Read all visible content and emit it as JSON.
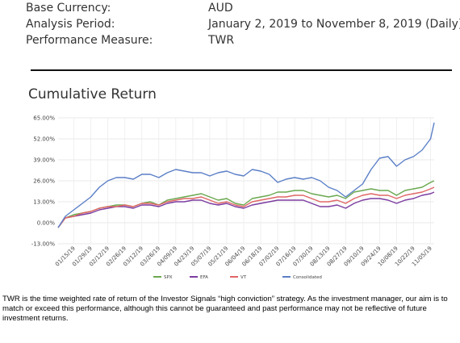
{
  "report_info": {
    "rows": [
      {
        "label": "Base Currency:",
        "value": "AUD"
      },
      {
        "label": "Analysis Period:",
        "value": "January 2, 2019 to November 8, 2019 (Daily)"
      },
      {
        "label": "Performance Measure:",
        "value": "TWR"
      }
    ]
  },
  "chart_data": {
    "type": "line",
    "title": "Cumulative Return",
    "xlabel": "",
    "ylabel": "",
    "ylim": [
      -13,
      65
    ],
    "y_ticks": [
      "65.00%",
      "52.00%",
      "39.00%",
      "26.00%",
      "13.00%",
      "0.00%",
      "-13.00%"
    ],
    "y_tick_values": [
      65,
      52,
      39,
      26,
      13,
      0,
      -13
    ],
    "x_tick_labels": [
      "01/15/19",
      "01/29/19",
      "02/12/19",
      "02/26/19",
      "03/12/19",
      "03/26/19",
      "04/09/19",
      "04/23/19",
      "05/07/19",
      "05/21/19",
      "06/04/19",
      "06/18/19",
      "07/02/19",
      "07/16/19",
      "07/30/19",
      "08/13/19",
      "08/27/19",
      "09/10/19",
      "09/24/19",
      "10/08/19",
      "10/22/19",
      "11/05/19"
    ],
    "x": [
      "01/02/19",
      "01/08/19",
      "01/15/19",
      "01/22/19",
      "01/29/19",
      "02/05/19",
      "02/12/19",
      "02/19/19",
      "02/26/19",
      "03/05/19",
      "03/12/19",
      "03/19/19",
      "03/26/19",
      "04/02/19",
      "04/09/19",
      "04/16/19",
      "04/23/19",
      "04/30/19",
      "05/07/19",
      "05/14/19",
      "05/21/19",
      "05/28/19",
      "06/04/19",
      "06/11/19",
      "06/18/19",
      "06/25/19",
      "07/02/19",
      "07/09/19",
      "07/16/19",
      "07/23/19",
      "07/30/19",
      "08/06/19",
      "08/13/19",
      "08/20/19",
      "08/27/19",
      "09/03/19",
      "09/10/19",
      "09/17/19",
      "09/24/19",
      "10/01/19",
      "10/08/19",
      "10/15/19",
      "10/22/19",
      "10/29/19",
      "11/05/19",
      "11/08/19"
    ],
    "series": [
      {
        "name": "SPX",
        "color": "#6aa84f",
        "values": [
          -3,
          3,
          5,
          6,
          7,
          9,
          10,
          11,
          11,
          10,
          12,
          13,
          11,
          14,
          15,
          16,
          17,
          18,
          16,
          14,
          15,
          12,
          11,
          15,
          16,
          17,
          19,
          19,
          20,
          20,
          18,
          17,
          16,
          17,
          15,
          19,
          20,
          21,
          20,
          20,
          17,
          20,
          21,
          22,
          25,
          26
        ]
      },
      {
        "name": "EFA",
        "color": "#7b3ca0",
        "values": [
          -3,
          3,
          4,
          5,
          6,
          8,
          9,
          10,
          10,
          9,
          11,
          11,
          10,
          12,
          13,
          13,
          14,
          14,
          12,
          11,
          12,
          10,
          9,
          11,
          12,
          13,
          14,
          14,
          14,
          14,
          12,
          10,
          10,
          11,
          9,
          12,
          14,
          15,
          15,
          14,
          12,
          14,
          15,
          17,
          18,
          19
        ]
      },
      {
        "name": "VT",
        "color": "#e06666",
        "values": [
          -3,
          3,
          4,
          6,
          7,
          9,
          10,
          10,
          11,
          10,
          12,
          12,
          11,
          13,
          14,
          15,
          15,
          16,
          14,
          12,
          13,
          11,
          10,
          13,
          14,
          15,
          16,
          16,
          17,
          17,
          15,
          13,
          13,
          14,
          12,
          15,
          17,
          18,
          17,
          17,
          15,
          17,
          18,
          19,
          21,
          22
        ]
      },
      {
        "name": "Consolidated",
        "color": "#5b7fc7",
        "values": [
          -3,
          4,
          8,
          12,
          16,
          22,
          26,
          28,
          28,
          27,
          30,
          30,
          28,
          31,
          33,
          32,
          31,
          31,
          29,
          31,
          32,
          30,
          29,
          33,
          32,
          30,
          25,
          27,
          28,
          27,
          28,
          26,
          22,
          20,
          16,
          20,
          24,
          33,
          40,
          41,
          35,
          39,
          41,
          45,
          52,
          62
        ]
      }
    ],
    "grid": true,
    "legend_position": "bottom"
  },
  "footnote": "TWR is the time weighted rate of return of the Investor Signals “high conviction” strategy. As the investment manager, our aim is to match or exceed this performance, although this cannot be guaranteed and past performance may not be reflective of future investment returns."
}
